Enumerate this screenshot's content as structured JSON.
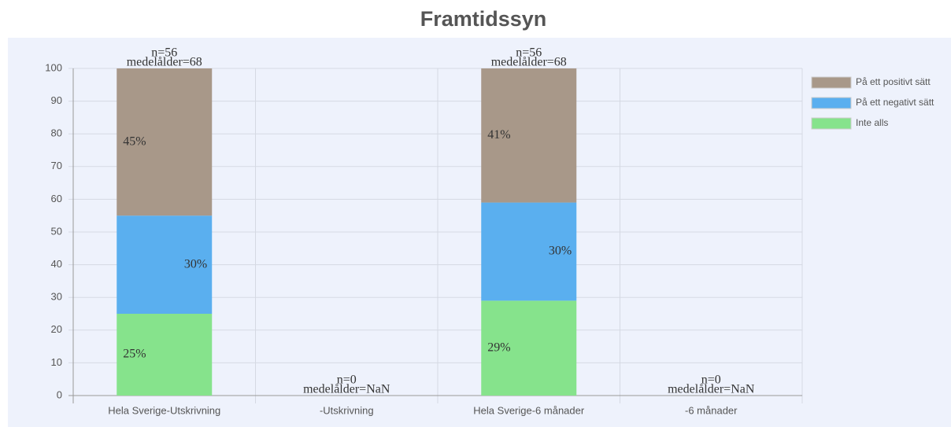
{
  "chart_data": {
    "type": "stacked_bar",
    "title": "Framtidssyn",
    "categories": [
      "Hela Sverige-Utskrivning",
      "-Utskrivning",
      "Hela Sverige-6 månader",
      "-6 månader"
    ],
    "series": [
      {
        "name": "Inte alls",
        "color": "#86e38c",
        "values": [
          25,
          null,
          29,
          null
        ],
        "value_labels": [
          "25%",
          null,
          "29%",
          null
        ]
      },
      {
        "name": "På ett negativt sätt",
        "color": "#5aafef",
        "values": [
          30,
          null,
          30,
          null
        ],
        "value_labels": [
          "30%",
          null,
          "30%",
          null
        ]
      },
      {
        "name": "På ett positivt sätt",
        "color": "#a89889",
        "values": [
          45,
          null,
          41,
          null
        ],
        "value_labels": [
          "45%",
          null,
          "41%",
          null
        ]
      }
    ],
    "annotations": [
      [
        "n=56",
        "medelålder=68"
      ],
      [
        "n=0",
        "medelålder=NaN"
      ],
      [
        "n=56",
        "medelålder=68"
      ],
      [
        "n=0",
        "medelålder=NaN"
      ]
    ],
    "ylim": [
      0,
      100
    ],
    "yticks": [
      0,
      10,
      20,
      30,
      40,
      50,
      60,
      70,
      80,
      90,
      100
    ],
    "grid": true,
    "legend": "right"
  }
}
